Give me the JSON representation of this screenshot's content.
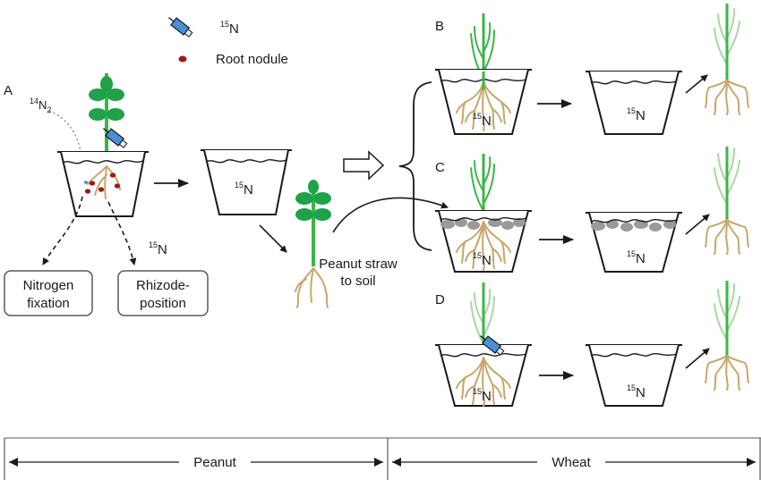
{
  "legend": {
    "isotope_label": "N",
    "isotope_mass": "15",
    "nodule_label": "Root nodule"
  },
  "panels": {
    "a": "A",
    "b": "B",
    "c": "C",
    "d": "D"
  },
  "labels": {
    "n2_mass": "14",
    "n2_symbol": "N",
    "n2_count": "2",
    "pot_n_symbol": "N",
    "pot_n_mass": "15",
    "peanut_straw_line1": "Peanut straw",
    "peanut_straw_line2": "to soil"
  },
  "boxes": {
    "nitrogen_line1": "Nitrogen",
    "nitrogen_line2": "fixation",
    "rhizo_line1": "Rhizode-",
    "rhizo_line2": "position"
  },
  "timeline": {
    "left": "Peanut",
    "right": "Wheat"
  },
  "colors": {
    "stem_green": "#3cb548",
    "leaf_green": "#1fa24a",
    "pale_green": "#a8d8a0",
    "root_tan": "#c9a66b",
    "nodule_red": "#a01818",
    "syringe_blue": "#4a8fd6",
    "residue_gray": "#9a9a9a"
  }
}
